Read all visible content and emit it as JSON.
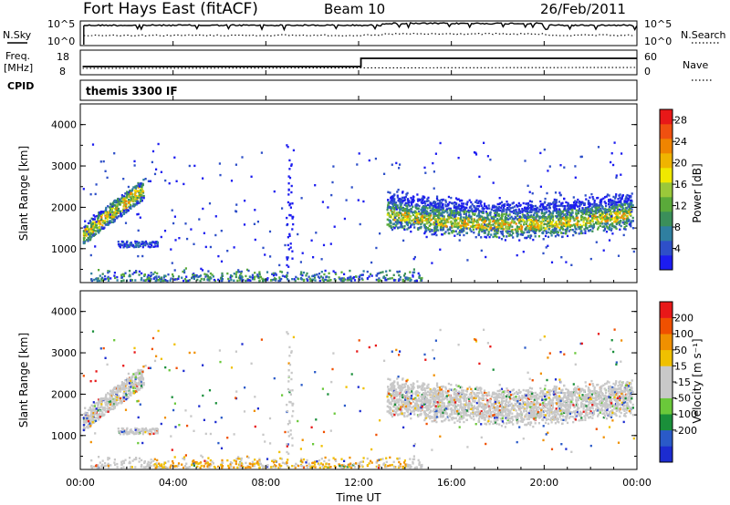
{
  "header": {
    "radar": "Fort Hays East (fitACF)",
    "beam": "Beam 10",
    "date": "26/Feb/2011"
  },
  "noise_panel": {
    "left_label": "N.Sky",
    "right_label": "N.Search",
    "left_ticks": [
      "10^5",
      "10^0"
    ],
    "right_ticks": [
      "10^5",
      "10^0"
    ]
  },
  "freq_panel": {
    "left_label_1": "Freq.",
    "left_label_2": "[MHz]",
    "left_ticks": [
      "18",
      "8"
    ],
    "right_label": "Nave",
    "right_ticks": [
      "60",
      "0"
    ]
  },
  "cpid_panel": {
    "label": "CPID",
    "mode": "themis 3300 IF"
  },
  "x_axis": {
    "label": "Time UT",
    "ticks": [
      "00:00",
      "04:00",
      "08:00",
      "12:00",
      "16:00",
      "20:00",
      "00:00"
    ]
  },
  "chart_data": [
    {
      "type": "heatmap",
      "panel": "power",
      "ylabel": "Slant Range [km]",
      "xlabel": "Time UT",
      "xlim_hours": [
        0,
        24
      ],
      "ylim_km": [
        180,
        4500
      ],
      "yticks": [
        1000,
        2000,
        3000,
        4000
      ],
      "colorbar": {
        "label": "Power [dB]",
        "ticks": [
          4,
          8,
          12,
          16,
          20,
          24,
          28
        ],
        "range": [
          0,
          30
        ],
        "colors": [
          "#1c1cf0",
          "#2e4fc8",
          "#2f7fa0",
          "#3b8f5a",
          "#5aaa3a",
          "#9ac83a",
          "#f0e800",
          "#f0b400",
          "#f08400",
          "#f05010",
          "#e81818"
        ]
      },
      "regions": [
        {
          "name": "early_band",
          "t0": 0.1,
          "t1": 2.7,
          "r0": 1250,
          "r1": 2600,
          "note": "rising echo band"
        },
        {
          "name": "patch_3h",
          "t0": 1.6,
          "t1": 3.3,
          "r0": 1030,
          "r1": 1180
        },
        {
          "name": "near_range",
          "t0": 0.5,
          "t1": 14.5,
          "r0": 180,
          "r1": 450
        },
        {
          "name": "main_band",
          "t0": 13.2,
          "t1": 23.8,
          "r0": 1400,
          "r1": 2650
        }
      ]
    },
    {
      "type": "heatmap",
      "panel": "velocity",
      "ylabel": "Slant Range [km]",
      "xlabel": "Time UT",
      "xlim_hours": [
        0,
        24
      ],
      "ylim_km": [
        180,
        4500
      ],
      "yticks": [
        1000,
        2000,
        3000,
        4000
      ],
      "colorbar": {
        "label": "Velocity [m s⁻¹]",
        "ticks": [
          "200",
          "100",
          "50",
          "15",
          "-15",
          "-50",
          "-100",
          "-200"
        ],
        "colors": [
          "#1c2cd0",
          "#2a5ac8",
          "#1a8f3a",
          "#6ac83a",
          "#c8c8c8",
          "#c8c8c8",
          "#f0c000",
          "#f09000",
          "#f05000",
          "#e81818"
        ]
      },
      "note": "ground scatter shown in grey"
    }
  ]
}
